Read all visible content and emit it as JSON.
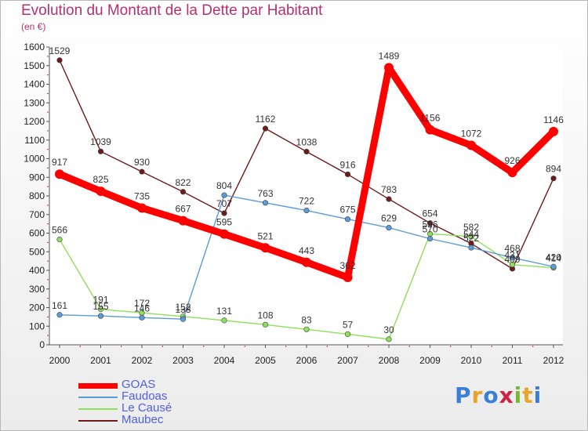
{
  "title": "Evolution du Montant de la Dette par Habitant",
  "subtitle": "(en €)",
  "brand": {
    "text": "Proxiti",
    "colors": [
      "#3a7fd5",
      "#e8a42a",
      "#3a7fd5",
      "#cc2244",
      "#7ab833",
      "#e8a42a",
      "#3a7fd5"
    ]
  },
  "chart_data": {
    "type": "line",
    "title": "Evolution du Montant de la Dette par Habitant",
    "subtitle": "(en €)",
    "xlabel": "",
    "ylabel": "",
    "x": [
      "2000",
      "2001",
      "2002",
      "2003",
      "2004",
      "2005",
      "2006",
      "2007",
      "2008",
      "2009",
      "2010",
      "2011",
      "2012"
    ],
    "ylim": [
      0,
      1600
    ],
    "yticks": [
      0,
      100,
      200,
      300,
      400,
      500,
      600,
      700,
      800,
      900,
      1000,
      1100,
      1200,
      1300,
      1400,
      1500,
      1600
    ],
    "grid": false,
    "legend_position": "bottom-left",
    "series": [
      {
        "name": "Maubec",
        "color": "#6e1a1a",
        "emphasis": false,
        "values": [
          1529,
          1039,
          930,
          822,
          707,
          1162,
          1038,
          916,
          783,
          654,
          544,
          409,
          894
        ],
        "labels": [
          "1529",
          "1039",
          "930",
          "822",
          "707",
          "1162",
          "1038",
          "916",
          "783",
          "654",
          "544",
          "409",
          "894"
        ]
      },
      {
        "name": "Le Causé",
        "color": "#8ee05a",
        "emphasis": false,
        "values": [
          566,
          191,
          172,
          152,
          131,
          108,
          83,
          57,
          30,
          596,
          582,
          431,
          414
        ],
        "labels": [
          "566",
          "191",
          "172",
          "152",
          "131",
          "108",
          "83",
          "57",
          "30",
          "596",
          "582",
          "431",
          "414"
        ]
      },
      {
        "name": "Faudoas",
        "color": "#5a9bd8",
        "emphasis": false,
        "values": [
          161,
          155,
          146,
          138,
          804,
          763,
          722,
          675,
          629,
          570,
          522,
          468,
          420
        ],
        "labels": [
          "161",
          "155",
          "146",
          "138",
          "804",
          "763",
          "722",
          "675",
          "629",
          "570",
          "522",
          "468",
          "420"
        ]
      },
      {
        "name": "GOAS",
        "color": "#ff0000",
        "emphasis": true,
        "values": [
          917,
          825,
          735,
          667,
          595,
          521,
          443,
          362,
          1489,
          1156,
          1072,
          926,
          1146
        ],
        "labels": [
          "917",
          "825",
          "735",
          "667",
          "595",
          "521",
          "443",
          "362",
          "1489",
          "1156",
          "1072",
          "926",
          "1146"
        ]
      }
    ]
  },
  "legend": [
    {
      "label": "GOAS",
      "color": "#ff0000",
      "emphasis": true
    },
    {
      "label": "Faudoas",
      "color": "#5a9bd8",
      "emphasis": false
    },
    {
      "label": "Le Causé",
      "color": "#8ee05a",
      "emphasis": false
    },
    {
      "label": "Maubec",
      "color": "#6e1a1a",
      "emphasis": false
    }
  ]
}
